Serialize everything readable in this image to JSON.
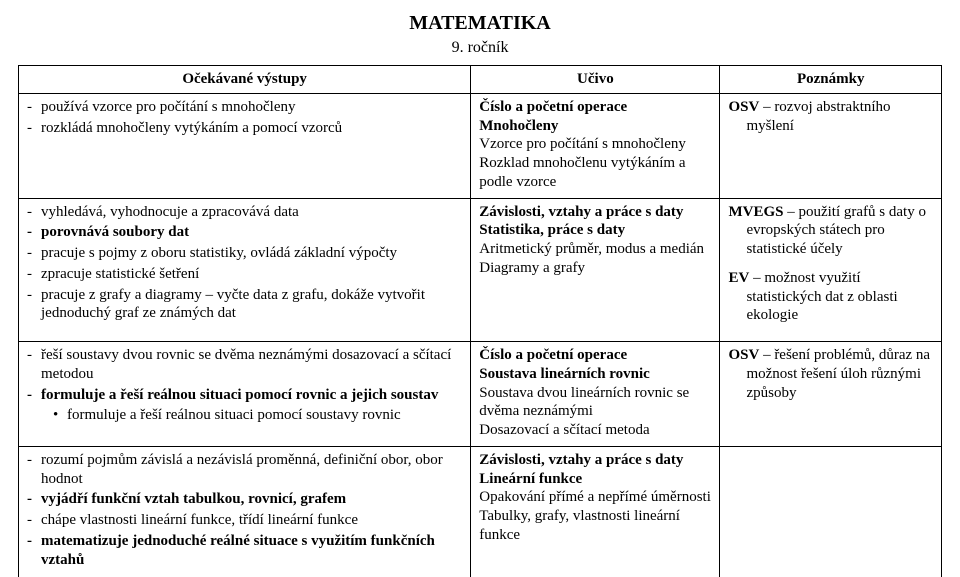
{
  "doc": {
    "title": "MATEMATIKA",
    "subtitle": "9. ročník",
    "headers": {
      "outcomes": "Očekávané výstupy",
      "topic": "Učivo",
      "notes": "Poznámky"
    }
  },
  "rows": [
    {
      "outcomes": [
        "používá vzorce pro počítání s mnohočleny",
        "rozkládá mnohočleny vytýkáním a pomocí vzorců"
      ],
      "topic": {
        "heading": "Číslo a početní operace",
        "sub": "Mnohočleny",
        "lines": [
          "Vzorce pro počítání s mnohočleny",
          "Rozklad mnohočlenu vytýkáním a podle vzorce"
        ]
      },
      "note": {
        "lead": "OSV",
        "rest": " – rozvoj abstraktního",
        "indent": "myšlení"
      }
    },
    {
      "outcomes": [
        "vyhledává, vyhodnocuje a zpracovává data",
        "porovnává soubory dat",
        "pracuje s pojmy z oboru statistiky, ovládá základní výpočty",
        "zpracuje statistické šetření",
        "pracuje z grafy a diagramy – vyčte data z grafu, dokáže vytvořit jednoduchý graf ze známých dat"
      ],
      "outcomes_bold": [
        false,
        true,
        false,
        false,
        false
      ],
      "topic": {
        "heading": "Závislosti, vztahy a práce s daty",
        "sub": "Statistika, práce s daty",
        "lines": [
          "Aritmetický průměr, modus a medián",
          "Diagramy a grafy"
        ]
      },
      "note1": {
        "lead": "MVEGS",
        "rest": " – použití grafů s daty o",
        "indent": "evropských státech pro statistické účely"
      },
      "note2": {
        "lead": "EV",
        "rest": " – možnost využití",
        "indent": "statistických dat z oblasti ekologie"
      }
    },
    {
      "outcomes": [
        "řeší soustavy dvou rovnic se dvěma neznámými dosazovací a sčítací metodou",
        "formuluje a řeší reálnou situaci pomocí rovnic a jejich soustav"
      ],
      "sub_bullet": "formuluje a řeší reálnou situaci pomocí soustavy rovnic",
      "topic": {
        "heading": "Číslo a početní operace",
        "sub": "Soustava lineárních rovnic",
        "lines": [
          "Soustava dvou lineárních rovnic se dvěma neznámými",
          "Dosazovací a sčítací metoda"
        ]
      },
      "note": {
        "lead": "OSV",
        "rest": " – řešení problémů, důraz na",
        "indent": "možnost řešení úloh různými způsoby"
      }
    },
    {
      "outcomes": [
        "rozumí pojmům závislá a nezávislá proměnná, definiční obor, obor hodnot",
        "vyjádří funkční vztah tabulkou, rovnicí, grafem",
        "chápe vlastnosti lineární funkce, třídí lineární funkce",
        "matematizuje jednoduché reálné situace s využitím funkčních vztahů"
      ],
      "outcomes_bold": [
        false,
        true,
        false,
        true
      ],
      "topic": {
        "heading": "Závislosti, vztahy a práce s daty",
        "sub": "Lineární funkce",
        "lines": [
          "Opakování přímé a nepřímé úměrnosti",
          "Tabulky, grafy, vlastnosti lineární funkce"
        ]
      }
    }
  ]
}
